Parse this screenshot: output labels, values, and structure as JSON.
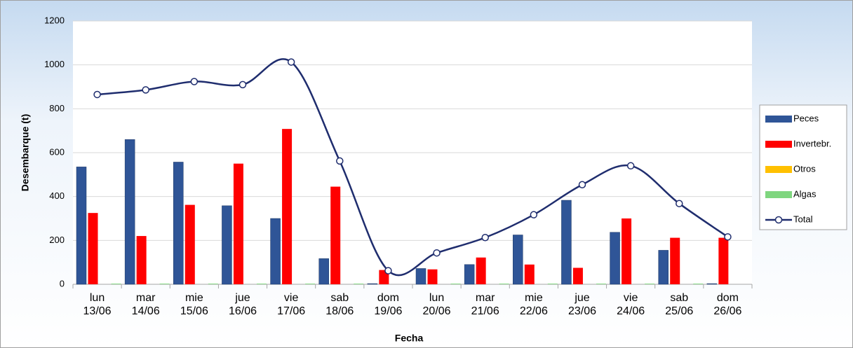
{
  "chart_data": {
    "type": "bar",
    "x_label": "Fecha",
    "y_label": "Desembarque (t)",
    "categories": [
      "lun\n13/06",
      "mar\n14/06",
      "mie\n15/06",
      "jue\n16/06",
      "vie\n17/06",
      "sab\n18/06",
      "dom\n19/06",
      "lun\n20/06",
      "mar\n21/06",
      "mie\n22/06",
      "jue\n23/06",
      "vie\n24/06",
      "sab\n25/06",
      "dom\n26/06"
    ],
    "series": [
      {
        "name": "Peces",
        "type": "bar",
        "color": "#2f5597",
        "values": [
          535,
          660,
          557,
          358,
          300,
          117,
          3,
          72,
          90,
          225,
          383,
          237,
          155,
          3
        ]
      },
      {
        "name": "Invertebr.",
        "type": "bar",
        "color": "#ff0000",
        "values": [
          325,
          220,
          362,
          550,
          708,
          445,
          65,
          68,
          122,
          90,
          75,
          300,
          212,
          212
        ]
      },
      {
        "name": "Otros",
        "type": "bar",
        "color": "#ffc000",
        "values": [
          0,
          0,
          0,
          0,
          0,
          0,
          0,
          0,
          0,
          0,
          0,
          0,
          0,
          0
        ]
      },
      {
        "name": "Algas",
        "type": "bar",
        "color": "#7fd67f",
        "values": [
          3,
          3,
          3,
          3,
          3,
          3,
          0,
          3,
          3,
          3,
          3,
          3,
          3,
          0
        ]
      },
      {
        "name": "Total",
        "type": "line",
        "color": "#1f2d6e",
        "values": [
          865,
          886,
          924,
          910,
          1013,
          562,
          62,
          143,
          213,
          317,
          454,
          540,
          368,
          216
        ]
      }
    ],
    "ylim": [
      0,
      1200
    ],
    "yticks": [
      0,
      200,
      400,
      600,
      800,
      1000,
      1200
    ],
    "grid": true,
    "legend": "right"
  }
}
